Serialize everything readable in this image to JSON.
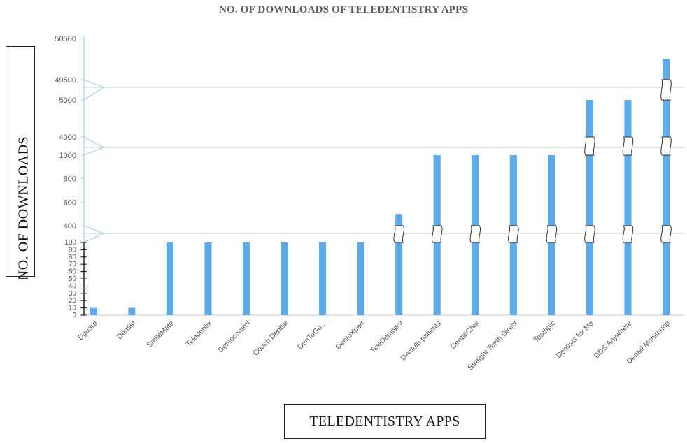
{
  "page": {
    "title": "NO. OF DOWNLOADS OF TELEDENTISTRY APPS",
    "y_axis_title": "NO. OF DOWNLOADS",
    "x_axis_title": "TELEDENTISTRY APPS"
  },
  "colors": {
    "bar": "#5aaaee",
    "axis_line": "#9fd0ea",
    "grid_break": "#c9d3da",
    "tick_text": "#555555",
    "title_text": "#5a5a5a"
  },
  "chart_data": {
    "type": "bar",
    "title": "NO. OF DOWNLOADS OF TELEDENTISTRY APPS",
    "xlabel": "TELEDENTISTRY APPS",
    "ylabel": "NO. OF DOWNLOADS",
    "axis_style": "broken y-axis with four segments",
    "categories": [
      "Dguard",
      "Dentist",
      "SmileMate",
      "Teledentix",
      "Dentocontrol",
      "Couch Dentist",
      "DenToGo...",
      "DentoXpert",
      "TeleDentistry",
      "Dentulu patients",
      "DentalChat",
      "Straight Teeth Direct",
      "Toothpic",
      "Dentists for Me",
      "DDS Anywhere",
      "Dental Monitoring"
    ],
    "values": [
      10,
      10,
      100,
      100,
      100,
      100,
      100,
      100,
      500,
      1000,
      1000,
      1000,
      1000,
      5000,
      5000,
      50000
    ],
    "y_segments": [
      {
        "range": [
          0,
          100
        ],
        "tick_labels": [
          "0",
          "10",
          "20",
          "30",
          "40",
          "50",
          "60",
          "70",
          "80",
          "90",
          "100"
        ]
      },
      {
        "range": [
          400,
          1000
        ],
        "tick_labels": [
          "400",
          "600",
          "800",
          "1000"
        ]
      },
      {
        "range": [
          4000,
          5000
        ],
        "tick_labels": [
          "4000",
          "5000"
        ]
      },
      {
        "range": [
          49500,
          50500
        ],
        "tick_labels": [
          "49500",
          "50500"
        ]
      }
    ],
    "grid": false,
    "legend": "none"
  }
}
